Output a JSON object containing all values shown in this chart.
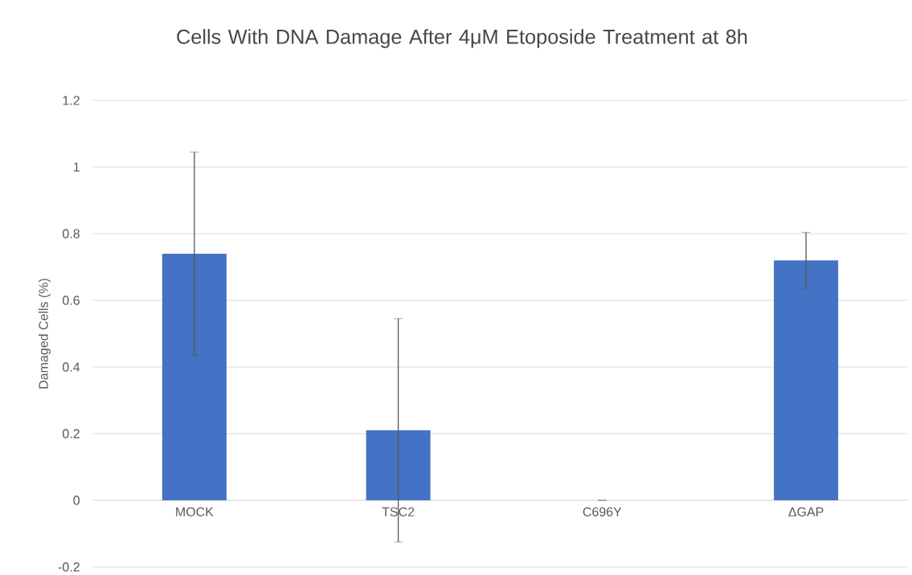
{
  "chart_data": {
    "type": "bar",
    "title": "Cells With DNA Damage After 4μM Etoposide Treatment at 8h",
    "ylabel": "Damaged Cells (%)",
    "categories": [
      "MOCK",
      "TSC2",
      "C696Y",
      "ΔGAP"
    ],
    "values": [
      0.74,
      0.21,
      0,
      0.72
    ],
    "errors": [
      0.305,
      0.335,
      0,
      0.084
    ],
    "color": "#4472c4",
    "ylim": [
      -0.2,
      1.2
    ],
    "yticks": [
      -0.2,
      0,
      0.2,
      0.4,
      0.6,
      0.8,
      1,
      1.2
    ],
    "grid": "y"
  }
}
